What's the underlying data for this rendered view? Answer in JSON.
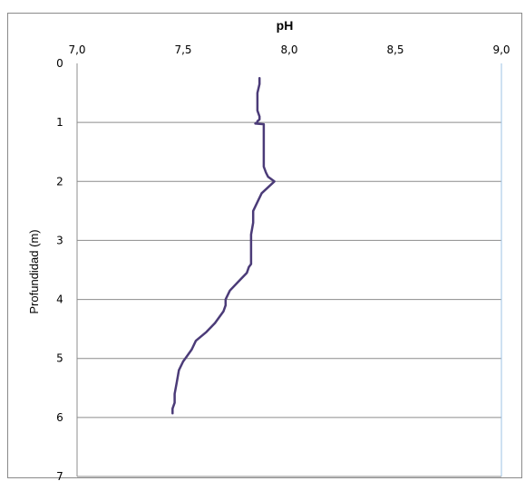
{
  "chart_data": {
    "type": "line",
    "xlabel": "pH",
    "ylabel": "Profundidad (m)",
    "xlim": [
      7.0,
      9.0
    ],
    "ylim": [
      0,
      7
    ],
    "y_inverted": true,
    "x_axis_position": "top",
    "x_ticks": [
      7.0,
      7.5,
      8.0,
      8.5,
      9.0
    ],
    "x_tick_labels": [
      "7,0",
      "7,5",
      "8,0",
      "8,5",
      "9,0"
    ],
    "y_ticks": [
      0,
      1,
      2,
      3,
      4,
      5,
      6,
      7
    ],
    "y_tick_labels": [
      "0",
      "1",
      "2",
      "3",
      "4",
      "5",
      "6",
      "7"
    ],
    "grid": "horizontal",
    "legend": "none",
    "series": [
      {
        "color": "#4b3b78",
        "x": [
          7.86,
          7.86,
          7.85,
          7.85,
          7.85,
          7.86,
          7.86,
          7.85,
          7.85,
          7.84,
          7.88,
          7.88,
          7.88,
          7.88,
          7.89,
          7.9,
          7.93,
          7.9,
          7.87,
          7.85,
          7.83,
          7.83,
          7.82,
          7.82,
          7.82,
          7.82,
          7.82,
          7.82,
          7.81,
          7.8,
          7.76,
          7.72,
          7.7,
          7.7,
          7.69,
          7.65,
          7.61,
          7.56,
          7.54,
          7.52,
          7.5,
          7.48,
          7.47,
          7.46,
          7.46,
          7.45,
          7.45
        ],
        "y": [
          0.25,
          0.35,
          0.5,
          0.7,
          0.8,
          0.9,
          0.95,
          0.98,
          1.0,
          1.02,
          1.03,
          1.2,
          1.5,
          1.75,
          1.85,
          1.92,
          2.0,
          2.1,
          2.2,
          2.35,
          2.5,
          2.7,
          2.9,
          3.0,
          3.1,
          3.2,
          3.3,
          3.4,
          3.45,
          3.55,
          3.7,
          3.85,
          4.0,
          4.1,
          4.2,
          4.4,
          4.55,
          4.7,
          4.85,
          4.95,
          5.05,
          5.2,
          5.4,
          5.6,
          5.75,
          5.85,
          5.93
        ]
      }
    ]
  }
}
